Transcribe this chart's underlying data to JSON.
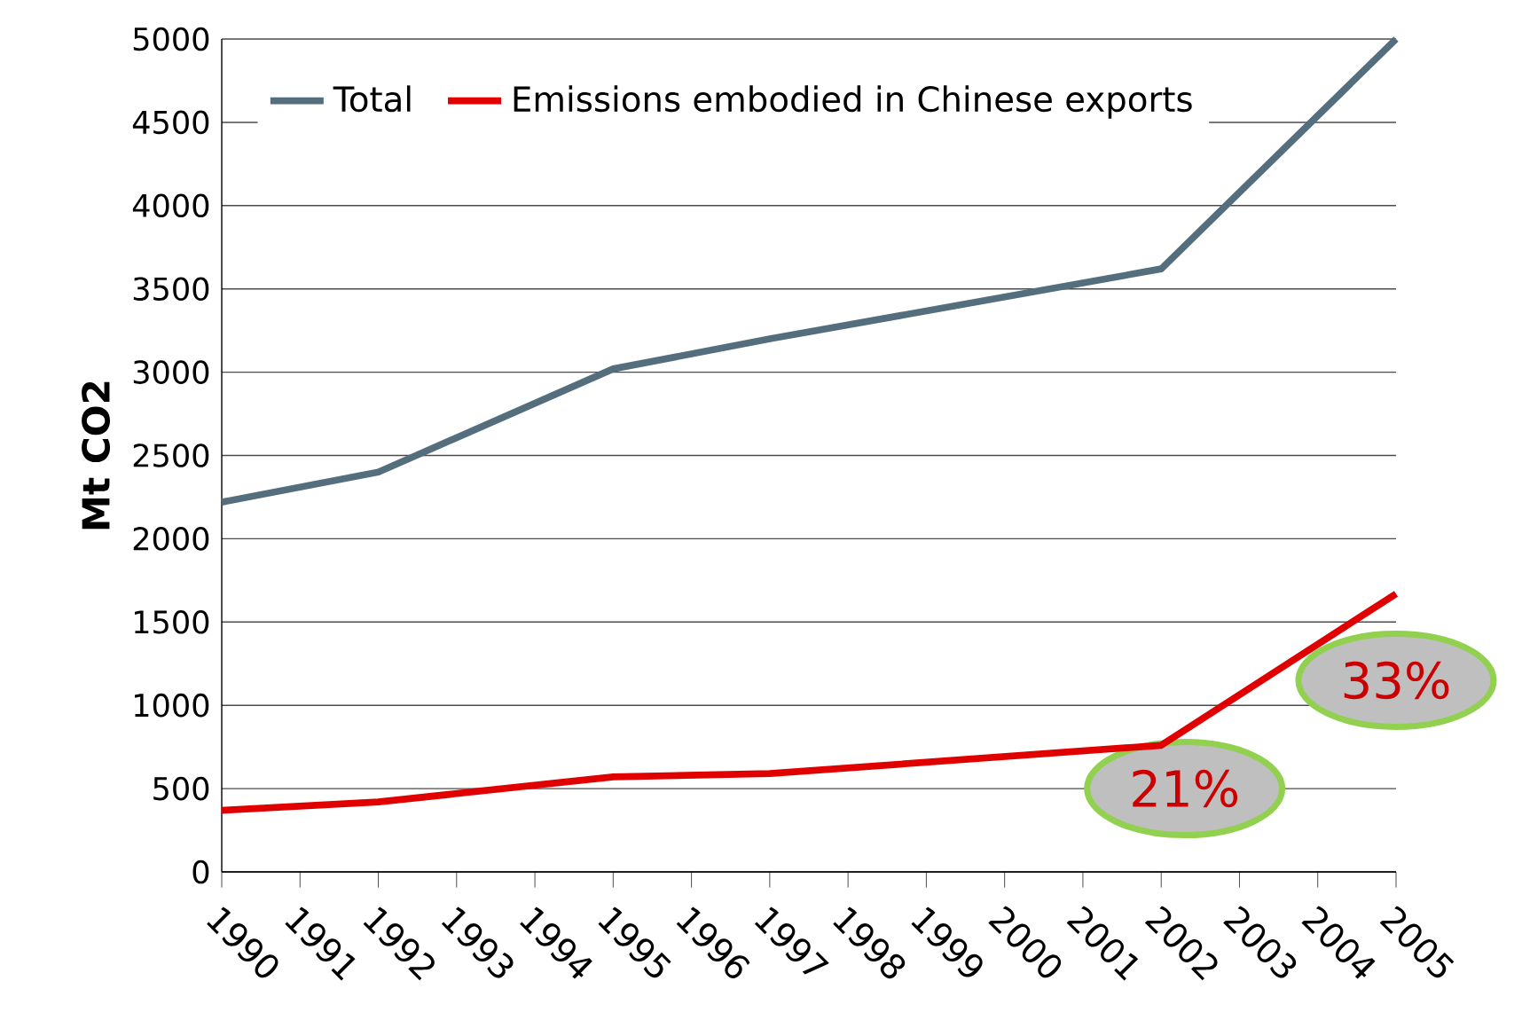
{
  "chart_data": {
    "type": "line",
    "ylabel": "Mt CO2",
    "xlim": [
      1990,
      2005
    ],
    "xticks": [
      1990,
      1991,
      1992,
      1993,
      1994,
      1995,
      1996,
      1997,
      1998,
      1999,
      2000,
      2001,
      2002,
      2003,
      2004,
      2005
    ],
    "ylim": [
      0,
      5000
    ],
    "yticks": [
      0,
      500,
      1000,
      1500,
      2000,
      2500,
      3000,
      3500,
      4000,
      4500,
      5000
    ],
    "grid": "y",
    "legend": "top left",
    "series": [
      {
        "name": "Total",
        "color": "#546e7e",
        "x": [
          1990,
          1992,
          1995,
          1997,
          2002,
          2005
        ],
        "values": [
          2220,
          2400,
          3020,
          3200,
          3620,
          5000
        ]
      },
      {
        "name": "Emissions embodied in Chinese exports",
        "color": "#e00000",
        "x": [
          1990,
          1992,
          1995,
          1997,
          2002,
          2005
        ],
        "values": [
          370,
          420,
          570,
          590,
          760,
          1670
        ]
      }
    ],
    "annotations": [
      "21%",
      "33%"
    ]
  }
}
